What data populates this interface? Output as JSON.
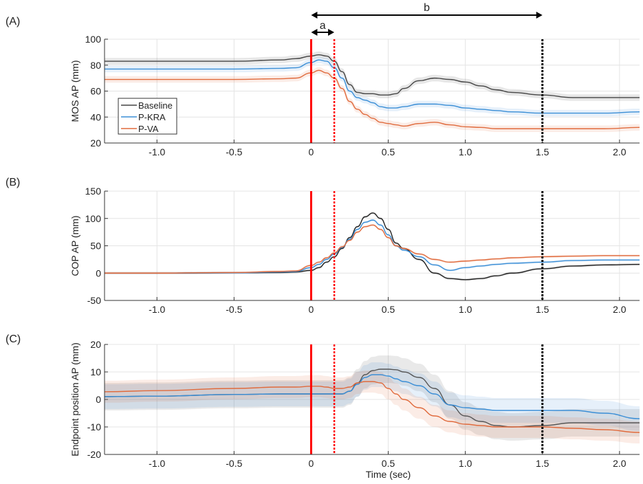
{
  "chart_data": [
    {
      "panel_label": "(A)",
      "type": "line",
      "ylabel": "MOS AP (mm)",
      "xlabel": "",
      "xlim": [
        -1.34,
        2.13
      ],
      "ylim": [
        20,
        100
      ],
      "yticks": [
        20,
        40,
        60,
        80,
        100
      ],
      "ytick_labels": [
        "20",
        "40",
        "60",
        "80",
        "100"
      ],
      "xticks": [
        -1.0,
        -0.5,
        0,
        0.5,
        1.0,
        1.5,
        2.0
      ],
      "xtick_labels": [
        "-1.0",
        "-0.5",
        "0",
        "0.5",
        "1.0",
        "1.5",
        "2.0"
      ],
      "grid": true,
      "legend": {
        "placement": "lower-left",
        "entries": [
          "Baseline",
          "P-KRA",
          "P-VA"
        ]
      },
      "x": [
        -1.34,
        -1.0,
        -0.5,
        -0.2,
        -0.1,
        0,
        0.05,
        0.1,
        0.15,
        0.2,
        0.25,
        0.3,
        0.35,
        0.4,
        0.45,
        0.5,
        0.55,
        0.6,
        0.7,
        0.8,
        0.9,
        1.0,
        1.1,
        1.2,
        1.3,
        1.5,
        1.7,
        1.9,
        2.13
      ],
      "series": [
        {
          "name": "Baseline",
          "color": "#444444",
          "band": 2.5,
          "values": [
            83,
            83,
            83,
            84,
            85,
            87,
            88,
            87,
            83,
            75,
            65,
            59,
            58,
            58,
            57,
            57,
            58,
            62,
            68,
            70,
            69,
            67,
            64,
            61,
            59,
            57,
            55,
            55,
            55
          ]
        },
        {
          "name": "P-KRA",
          "color": "#3a8ed6",
          "band": 2.5,
          "values": [
            77,
            77,
            77,
            77.5,
            78,
            82,
            84,
            83,
            78,
            70,
            60,
            55,
            53,
            51,
            48,
            47,
            47,
            48,
            50,
            50,
            49,
            47,
            46,
            45,
            44,
            43,
            43,
            43,
            44
          ]
        },
        {
          "name": "P-VA",
          "color": "#e06a3c",
          "band": 2.5,
          "values": [
            69,
            69,
            69,
            69.5,
            70,
            74,
            76,
            74,
            70,
            62,
            52,
            46,
            42,
            39,
            36,
            35,
            34,
            33,
            35,
            36,
            34,
            32.5,
            32,
            31,
            31,
            31,
            31,
            31,
            32
          ]
        }
      ],
      "annotations": {
        "arrow_b": {
          "label": "b",
          "from": 0,
          "to": 1.5
        },
        "arrow_a": {
          "label": "a",
          "from": 0,
          "to": 0.15
        }
      }
    },
    {
      "panel_label": "(B)",
      "type": "line",
      "ylabel": "COP AP (mm)",
      "xlabel": "",
      "xlim": [
        -1.34,
        2.13
      ],
      "ylim": [
        -50,
        150
      ],
      "yticks": [
        -50,
        0,
        50,
        100,
        150
      ],
      "ytick_labels": [
        "-50",
        "0",
        "50",
        "100",
        "150"
      ],
      "xticks": [
        -1.0,
        -0.5,
        0,
        0.5,
        1.0,
        1.5,
        2.0
      ],
      "xtick_labels": [
        "-1.0",
        "-0.5",
        "0",
        "0.5",
        "1.0",
        "1.5",
        "2.0"
      ],
      "grid": true,
      "x": [
        -1.34,
        -1.0,
        -0.5,
        -0.2,
        -0.1,
        0,
        0.05,
        0.1,
        0.15,
        0.2,
        0.25,
        0.3,
        0.35,
        0.4,
        0.45,
        0.5,
        0.55,
        0.6,
        0.7,
        0.8,
        0.9,
        1.0,
        1.1,
        1.2,
        1.3,
        1.5,
        1.7,
        1.9,
        2.13
      ],
      "series": [
        {
          "name": "Baseline",
          "color": "#222222",
          "band": 2,
          "values": [
            0,
            0,
            0.5,
            1,
            2,
            5,
            10,
            20,
            30,
            45,
            65,
            85,
            103,
            110,
            100,
            80,
            55,
            45,
            25,
            0,
            -10,
            -12,
            -10,
            -5,
            0,
            8,
            13,
            15,
            16
          ]
        },
        {
          "name": "P-KRA",
          "color": "#3a8ed6",
          "band": 2,
          "values": [
            0,
            0,
            0.5,
            2,
            3,
            10,
            16,
            25,
            35,
            47,
            62,
            80,
            93,
            97,
            88,
            70,
            50,
            42,
            30,
            15,
            5,
            10,
            13,
            16,
            18,
            20,
            23,
            24,
            24
          ]
        },
        {
          "name": "P-VA",
          "color": "#e06a3c",
          "band": 2,
          "values": [
            0,
            0,
            1,
            3,
            4,
            14,
            20,
            28,
            37,
            48,
            60,
            75,
            85,
            88,
            80,
            65,
            50,
            45,
            35,
            25,
            20,
            22,
            24,
            26,
            28,
            30,
            31,
            32,
            32
          ]
        }
      ]
    },
    {
      "panel_label": "(C)",
      "type": "line",
      "ylabel": "Endpoint position AP (mm)",
      "xlabel": "Time (sec)",
      "xlim": [
        -1.34,
        2.13
      ],
      "ylim": [
        -20,
        20
      ],
      "yticks": [
        -20,
        -10,
        0,
        10,
        20
      ],
      "ytick_labels": [
        "-20",
        "-10",
        "0",
        "10",
        "20"
      ],
      "xticks": [
        -1.0,
        -0.5,
        0,
        0.5,
        1.0,
        1.5,
        2.0
      ],
      "xtick_labels": [
        "-1.0",
        "-0.5",
        "0",
        "0.5",
        "1.0",
        "1.5",
        "2.0"
      ],
      "grid": true,
      "x": [
        -1.34,
        -1.0,
        -0.5,
        -0.2,
        -0.1,
        0,
        0.05,
        0.1,
        0.15,
        0.2,
        0.25,
        0.3,
        0.35,
        0.4,
        0.45,
        0.5,
        0.55,
        0.6,
        0.7,
        0.8,
        0.9,
        1.0,
        1.1,
        1.2,
        1.3,
        1.5,
        1.7,
        1.9,
        2.13
      ],
      "series": [
        {
          "name": "Baseline",
          "color": "#555555",
          "band": 5,
          "values": [
            1,
            1.2,
            1.8,
            2,
            2,
            2,
            2,
            2,
            2,
            2,
            3,
            6,
            9,
            10.5,
            11,
            11,
            10.8,
            10,
            8,
            4,
            -2,
            -6,
            -8,
            -9.5,
            -10,
            -9.5,
            -8.5,
            -8.5,
            -8.5
          ]
        },
        {
          "name": "P-KRA",
          "color": "#3a8ed6",
          "band": 4.5,
          "values": [
            1,
            1.2,
            1.8,
            2,
            2,
            2,
            2,
            2,
            2,
            2,
            3,
            5.5,
            8,
            9,
            9,
            8.5,
            7.5,
            6.5,
            5,
            2,
            -2,
            -3,
            -3.5,
            -4,
            -4,
            -4,
            -4,
            -5,
            -7
          ]
        },
        {
          "name": "P-VA",
          "color": "#e06a3c",
          "band": 4,
          "values": [
            2.8,
            3.2,
            4,
            4.5,
            4.5,
            4.8,
            4.8,
            4.5,
            4,
            4,
            4.5,
            6,
            6.5,
            6.5,
            6,
            4,
            2,
            0,
            -3,
            -6,
            -8,
            -9,
            -9.5,
            -10,
            -10,
            -10,
            -10.5,
            -11,
            -12
          ]
        }
      ]
    }
  ],
  "markers": {
    "onset": 0,
    "a_end": 0.15,
    "b_end": 1.5,
    "onset_color": "#ff0000",
    "end_color": "#000000"
  }
}
